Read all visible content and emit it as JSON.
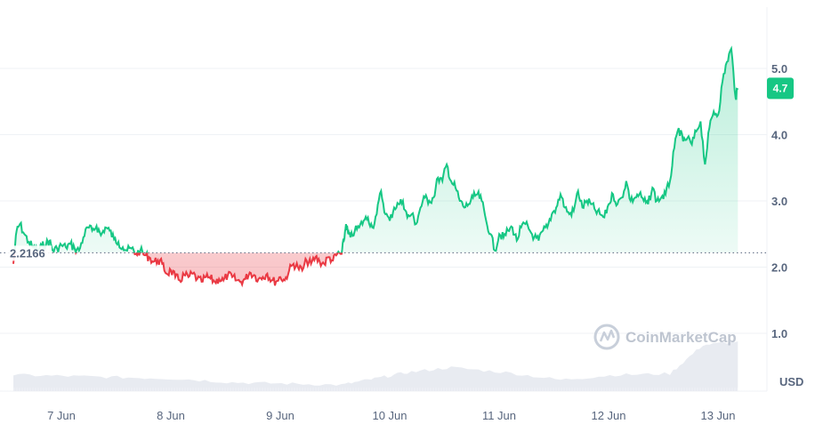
{
  "chart_data": {
    "type": "line",
    "title": "",
    "xlabel": "",
    "ylabel": "",
    "unit_label": "USD",
    "ylim": [
      0.3,
      5.9
    ],
    "yticks": [
      "1.0",
      "2.0",
      "3.0",
      "4.0",
      "5.0"
    ],
    "ytick_values": [
      1.0,
      2.0,
      3.0,
      4.0,
      5.0
    ],
    "xticks": [
      "7 Jun",
      "8 Jun",
      "9 Jun",
      "10 Jun",
      "11 Jun",
      "12 Jun",
      "13 Jun"
    ],
    "baseline_value": 2.2166,
    "baseline_label": "2.2166",
    "current_price_label": "4.7",
    "current_price_value": 4.7,
    "up_color": "#16c784",
    "down_color": "#ea3943",
    "grid": true,
    "price_series": {
      "name": "",
      "t": [
        0.0,
        0.03,
        0.06,
        0.1,
        0.14,
        0.18,
        0.22,
        0.26,
        0.3,
        0.33,
        0.36,
        0.4,
        0.44,
        0.48,
        0.52,
        0.56,
        0.6,
        0.64,
        0.68,
        0.72,
        0.76,
        0.8,
        0.84,
        0.88,
        0.92,
        0.96,
        1.0,
        1.04,
        1.08,
        1.12,
        1.16,
        1.2,
        1.24,
        1.28,
        1.32,
        1.36,
        1.4,
        1.44,
        1.48,
        1.52,
        1.56,
        1.6,
        1.64,
        1.68,
        1.72,
        1.76,
        1.8,
        1.84,
        1.88,
        1.92,
        1.96,
        2.0,
        2.04,
        2.08,
        2.12,
        2.16,
        2.2,
        2.24,
        2.28,
        2.32,
        2.36,
        2.4,
        2.44,
        2.48,
        2.52,
        2.56,
        2.6,
        2.64,
        2.68,
        2.72,
        2.76,
        2.8,
        2.84,
        2.88,
        2.92,
        2.96,
        3.0,
        3.02,
        3.04,
        3.06,
        3.08,
        3.12,
        3.16,
        3.2,
        3.24,
        3.28,
        3.32,
        3.36,
        3.4,
        3.44,
        3.48,
        3.52,
        3.56,
        3.6,
        3.64,
        3.68,
        3.72,
        3.76,
        3.8,
        3.84,
        3.88,
        3.92,
        3.96,
        4.0,
        4.04,
        4.08,
        4.12,
        4.16,
        4.2,
        4.24,
        4.28,
        4.32,
        4.36,
        4.4,
        4.44,
        4.48,
        4.52,
        4.56,
        4.6,
        4.64,
        4.68,
        4.72,
        4.76,
        4.8,
        4.84,
        4.88,
        4.92,
        4.96,
        5.0,
        5.04,
        5.08,
        5.12,
        5.16,
        5.2,
        5.24,
        5.28,
        5.32,
        5.36,
        5.4,
        5.44,
        5.48,
        5.52,
        5.56,
        5.6,
        5.64,
        5.68,
        5.72,
        5.76,
        5.8,
        5.84,
        5.88,
        5.92,
        5.96,
        6.0,
        6.04,
        6.08,
        6.12,
        6.16,
        6.2,
        6.24,
        6.28,
        6.32,
        6.36,
        6.4,
        6.44,
        6.48,
        6.52,
        6.56,
        6.6,
        6.62
      ],
      "values": [
        2.05,
        2.55,
        2.65,
        2.5,
        2.38,
        2.3,
        2.25,
        2.32,
        2.35,
        2.4,
        2.25,
        2.28,
        2.33,
        2.3,
        2.35,
        2.28,
        2.25,
        2.45,
        2.6,
        2.55,
        2.62,
        2.48,
        2.6,
        2.55,
        2.42,
        2.38,
        2.3,
        2.25,
        2.28,
        2.2,
        2.25,
        2.18,
        2.15,
        2.08,
        2.1,
        2.05,
        1.9,
        1.95,
        1.85,
        1.8,
        1.88,
        1.85,
        1.9,
        1.82,
        1.78,
        1.85,
        1.83,
        1.78,
        1.82,
        1.8,
        1.88,
        1.85,
        1.8,
        1.78,
        1.82,
        1.92,
        1.88,
        1.82,
        1.85,
        1.9,
        1.8,
        1.78,
        1.85,
        1.8,
        1.95,
        2.05,
        2.0,
        1.95,
        2.1,
        2.05,
        2.15,
        2.08,
        2.05,
        2.15,
        2.1,
        2.2,
        2.2,
        2.4,
        2.65,
        2.5,
        2.45,
        2.55,
        2.6,
        2.7,
        2.75,
        2.6,
        2.8,
        3.15,
        2.8,
        2.7,
        2.9,
        2.95,
        3.0,
        2.75,
        2.8,
        2.65,
        2.9,
        3.05,
        3.0,
        3.05,
        3.35,
        3.3,
        3.55,
        3.3,
        3.2,
        3.0,
        2.9,
        2.95,
        3.05,
        3.1,
        3.0,
        2.7,
        2.5,
        2.25,
        2.5,
        2.45,
        2.55,
        2.6,
        2.4,
        2.6,
        2.65,
        2.55,
        2.45,
        2.4,
        2.55,
        2.6,
        2.8,
        2.9,
        3.1,
        2.9,
        2.8,
        2.85,
        3.15,
        2.9,
        3.0,
        2.95,
        2.85,
        2.8,
        2.75,
        2.95,
        3.1,
        2.95,
        3.05,
        3.3,
        3.0,
        3.05,
        3.1,
        3.0,
        2.95,
        3.2,
        3.0,
        3.05,
        3.1,
        3.3,
        3.8,
        4.1,
        3.9,
        3.95,
        3.85,
        4.05,
        4.2,
        3.55,
        4.1,
        4.35,
        4.3,
        4.8,
        5.1,
        5.3,
        4.55,
        4.7
      ]
    },
    "volume_series": {
      "name": "",
      "t": [
        0,
        0.5,
        1,
        1.5,
        2,
        2.5,
        3,
        3.3,
        3.6,
        4,
        4.5,
        5,
        5.5,
        6,
        6.3,
        6.62
      ],
      "values": [
        0.26,
        0.24,
        0.22,
        0.2,
        0.14,
        0.12,
        0.1,
        0.2,
        0.3,
        0.38,
        0.3,
        0.18,
        0.26,
        0.28,
        0.74,
        0.8
      ]
    },
    "watermark": "CoinMarketCap"
  }
}
